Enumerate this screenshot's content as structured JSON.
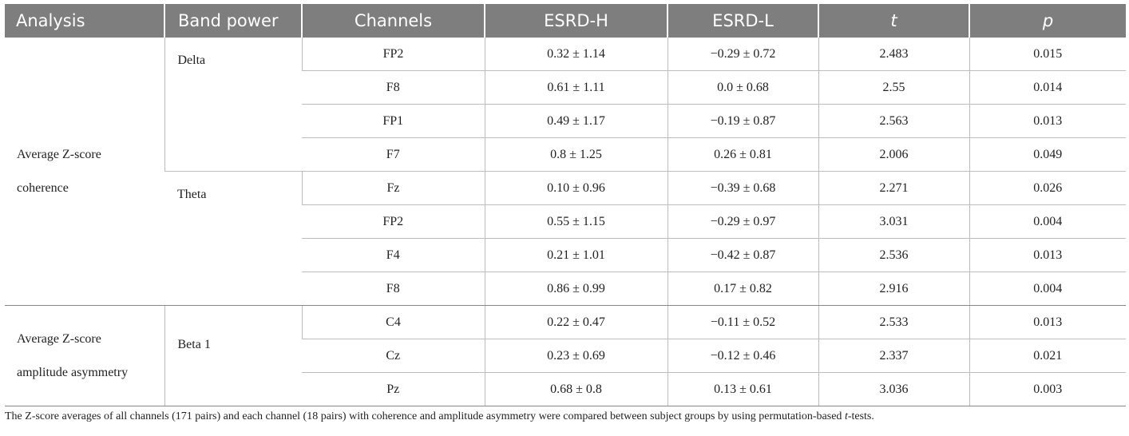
{
  "headers": {
    "analysis": "Analysis",
    "band_power": "Band power",
    "channels": "Channels",
    "esrd_h": "ESRD-H",
    "esrd_l": "ESRD-L",
    "t": "t",
    "p": "p"
  },
  "groups": {
    "coherence": {
      "analysis_line1": "Average Z-score",
      "analysis_line2": "coherence",
      "delta": {
        "band": "Delta",
        "rows": [
          {
            "channel": "FP2",
            "esrd_h": "0.32 ± 1.14",
            "esrd_l": "−0.29 ± 0.72",
            "t": "2.483",
            "p": "0.015"
          },
          {
            "channel": "F8",
            "esrd_h": "0.61 ± 1.11",
            "esrd_l": "0.0 ± 0.68",
            "t": "2.55",
            "p": "0.014"
          },
          {
            "channel": "FP1",
            "esrd_h": "0.49 ± 1.17",
            "esrd_l": "−0.19 ± 0.87",
            "t": "2.563",
            "p": "0.013"
          },
          {
            "channel": "F7",
            "esrd_h": "0.8 ± 1.25",
            "esrd_l": "0.26 ± 0.81",
            "t": "2.006",
            "p": "0.049"
          }
        ]
      },
      "theta": {
        "band": "Theta",
        "rows": [
          {
            "channel": "Fz",
            "esrd_h": "0.10 ± 0.96",
            "esrd_l": "−0.39 ± 0.68",
            "t": "2.271",
            "p": "0.026"
          },
          {
            "channel": "FP2",
            "esrd_h": "0.55 ± 1.15",
            "esrd_l": "−0.29 ± 0.97",
            "t": "3.031",
            "p": "0.004"
          },
          {
            "channel": "F4",
            "esrd_h": "0.21 ± 1.01",
            "esrd_l": "−0.42 ± 0.87",
            "t": "2.536",
            "p": "0.013"
          },
          {
            "channel": "F8",
            "esrd_h": "0.86 ± 0.99",
            "esrd_l": "0.17 ± 0.82",
            "t": "2.916",
            "p": "0.004"
          }
        ]
      }
    },
    "asymmetry": {
      "analysis_line1": "Average Z-score",
      "analysis_line2": "amplitude asymmetry",
      "beta1": {
        "band": "Beta 1",
        "rows": [
          {
            "channel": "C4",
            "esrd_h": "0.22 ± 0.47",
            "esrd_l": "−0.11 ± 0.52",
            "t": "2.533",
            "p": "0.013"
          },
          {
            "channel": "Cz",
            "esrd_h": "0.23 ± 0.69",
            "esrd_l": "−0.12 ± 0.46",
            "t": "2.337",
            "p": "0.021"
          },
          {
            "channel": "Pz",
            "esrd_h": "0.68 ± 0.8",
            "esrd_l": "0.13 ± 0.61",
            "t": "3.036",
            "p": "0.003"
          }
        ]
      }
    }
  },
  "footnote": {
    "before_italic": "The Z-score averages of all channels (171 pairs) and each channel (18 pairs) with coherence and amplitude asymmetry were compared between subject groups by using permutation-based ",
    "italic": "t",
    "after_italic": "-tests."
  }
}
